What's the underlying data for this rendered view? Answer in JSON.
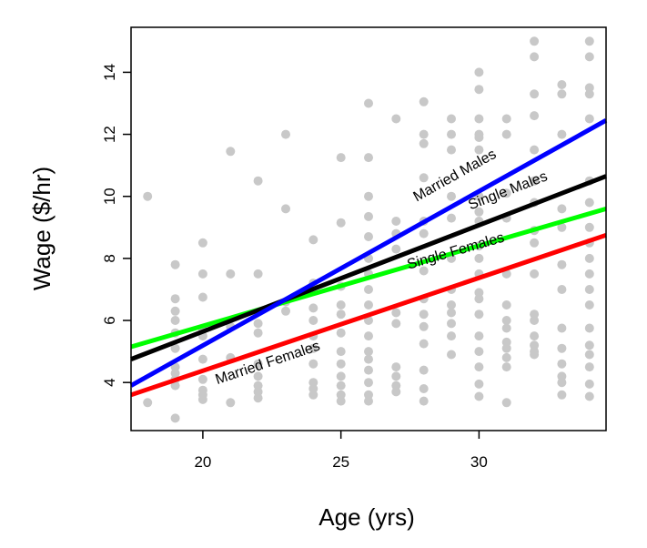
{
  "chart_data": {
    "type": "scatter",
    "title": "",
    "xlabel": "Age (yrs)",
    "ylabel": "Wage ($/hr)",
    "xlim": [
      17.4,
      34.6
    ],
    "ylim": [
      2.45,
      15.45
    ],
    "xticks": [
      20,
      25,
      30
    ],
    "yticks": [
      4,
      6,
      8,
      10,
      12,
      14
    ],
    "grid": false,
    "legend": "none",
    "point_color": "#c8c8c8",
    "points": [
      [
        18,
        10.0
      ],
      [
        18,
        3.35
      ],
      [
        19,
        7.8
      ],
      [
        19,
        6.7
      ],
      [
        19,
        6.3
      ],
      [
        19,
        6.0
      ],
      [
        19,
        5.6
      ],
      [
        19,
        5.1
      ],
      [
        19,
        4.5
      ],
      [
        19,
        4.3
      ],
      [
        19,
        4.1
      ],
      [
        19,
        3.9
      ],
      [
        19,
        2.85
      ],
      [
        20,
        8.5
      ],
      [
        20,
        7.5
      ],
      [
        20,
        6.75
      ],
      [
        20,
        5.7
      ],
      [
        20,
        5.5
      ],
      [
        20,
        4.75
      ],
      [
        20,
        4.1
      ],
      [
        20,
        3.75
      ],
      [
        20,
        3.6
      ],
      [
        20,
        3.45
      ],
      [
        21,
        11.45
      ],
      [
        21,
        7.5
      ],
      [
        21,
        5.8
      ],
      [
        21,
        4.8
      ],
      [
        21,
        3.35
      ],
      [
        22,
        10.5
      ],
      [
        22,
        7.5
      ],
      [
        22,
        5.9
      ],
      [
        22,
        5.6
      ],
      [
        22,
        4.6
      ],
      [
        22,
        4.2
      ],
      [
        22,
        3.9
      ],
      [
        22,
        3.7
      ],
      [
        22,
        3.5
      ],
      [
        23,
        12.0
      ],
      [
        23,
        9.6
      ],
      [
        23,
        6.6
      ],
      [
        23,
        6.3
      ],
      [
        24,
        8.6
      ],
      [
        24,
        7.2
      ],
      [
        24,
        6.4
      ],
      [
        24,
        6.0
      ],
      [
        24,
        5.5
      ],
      [
        24,
        5.1
      ],
      [
        24,
        4.6
      ],
      [
        24,
        4.0
      ],
      [
        24,
        3.8
      ],
      [
        24,
        3.6
      ],
      [
        25,
        11.25
      ],
      [
        25,
        9.15
      ],
      [
        25,
        7.1
      ],
      [
        25,
        6.5
      ],
      [
        25,
        6.2
      ],
      [
        25,
        5.6
      ],
      [
        25,
        5.0
      ],
      [
        25,
        4.6
      ],
      [
        25,
        4.2
      ],
      [
        25,
        3.9
      ],
      [
        25,
        3.6
      ],
      [
        25,
        3.4
      ],
      [
        26,
        13.0
      ],
      [
        26,
        11.25
      ],
      [
        26,
        10.0
      ],
      [
        26,
        9.35
      ],
      [
        26,
        8.7
      ],
      [
        26,
        8.0
      ],
      [
        26,
        7.5
      ],
      [
        26,
        7.0
      ],
      [
        26,
        6.5
      ],
      [
        26,
        6.0
      ],
      [
        26,
        5.5
      ],
      [
        26,
        5.0
      ],
      [
        26,
        4.75
      ],
      [
        26,
        4.4
      ],
      [
        26,
        4.0
      ],
      [
        26,
        3.6
      ],
      [
        26,
        3.4
      ],
      [
        27,
        12.5
      ],
      [
        27,
        9.2
      ],
      [
        27,
        8.8
      ],
      [
        27,
        8.3
      ],
      [
        27,
        6.25
      ],
      [
        27,
        5.9
      ],
      [
        27,
        4.5
      ],
      [
        27,
        4.2
      ],
      [
        27,
        3.9
      ],
      [
        27,
        3.7
      ],
      [
        28,
        13.05
      ],
      [
        28,
        12.0
      ],
      [
        28,
        11.7
      ],
      [
        28,
        10.6
      ],
      [
        28,
        9.2
      ],
      [
        28,
        8.8
      ],
      [
        28,
        7.6
      ],
      [
        28,
        6.7
      ],
      [
        28,
        6.2
      ],
      [
        28,
        5.8
      ],
      [
        28,
        5.25
      ],
      [
        28,
        4.4
      ],
      [
        28,
        3.8
      ],
      [
        28,
        3.4
      ],
      [
        29,
        12.5
      ],
      [
        29,
        12.0
      ],
      [
        29,
        11.5
      ],
      [
        29,
        10.0
      ],
      [
        29,
        9.3
      ],
      [
        29,
        8.0
      ],
      [
        29,
        7.0
      ],
      [
        29,
        6.5
      ],
      [
        29,
        6.25
      ],
      [
        29,
        5.9
      ],
      [
        29,
        5.5
      ],
      [
        29,
        4.9
      ],
      [
        30,
        14.0
      ],
      [
        30,
        13.45
      ],
      [
        30,
        12.5
      ],
      [
        30,
        12.0
      ],
      [
        30,
        11.9
      ],
      [
        30,
        11.5
      ],
      [
        30,
        10.0
      ],
      [
        30,
        9.5
      ],
      [
        30,
        9.2
      ],
      [
        30,
        8.4
      ],
      [
        30,
        8.0
      ],
      [
        30,
        7.5
      ],
      [
        30,
        6.9
      ],
      [
        30,
        6.7
      ],
      [
        30,
        6.2
      ],
      [
        30,
        5.5
      ],
      [
        30,
        5.0
      ],
      [
        30,
        4.5
      ],
      [
        30,
        3.95
      ],
      [
        30,
        3.55
      ],
      [
        31,
        12.5
      ],
      [
        31,
        12.0
      ],
      [
        31,
        10.1
      ],
      [
        31,
        9.3
      ],
      [
        31,
        7.5
      ],
      [
        31,
        6.5
      ],
      [
        31,
        6.0
      ],
      [
        31,
        5.75
      ],
      [
        31,
        5.3
      ],
      [
        31,
        5.1
      ],
      [
        31,
        4.8
      ],
      [
        31,
        4.5
      ],
      [
        31,
        3.35
      ],
      [
        32,
        15.0
      ],
      [
        32,
        14.5
      ],
      [
        32,
        13.3
      ],
      [
        32,
        12.6
      ],
      [
        32,
        11.5
      ],
      [
        32,
        10.5
      ],
      [
        32,
        9.8
      ],
      [
        32,
        8.9
      ],
      [
        32,
        8.5
      ],
      [
        32,
        7.5
      ],
      [
        32,
        6.2
      ],
      [
        32,
        6.0
      ],
      [
        32,
        5.5
      ],
      [
        32,
        5.2
      ],
      [
        32,
        5.0
      ],
      [
        32,
        4.9
      ],
      [
        33,
        13.6
      ],
      [
        33,
        13.3
      ],
      [
        33,
        12.0
      ],
      [
        33,
        9.6
      ],
      [
        33,
        9.0
      ],
      [
        33,
        7.8
      ],
      [
        33,
        7.0
      ],
      [
        33,
        5.75
      ],
      [
        33,
        5.1
      ],
      [
        33,
        4.6
      ],
      [
        33,
        4.2
      ],
      [
        33,
        4.0
      ],
      [
        33,
        3.6
      ],
      [
        34,
        15.0
      ],
      [
        34,
        14.5
      ],
      [
        34,
        13.5
      ],
      [
        34,
        13.3
      ],
      [
        34,
        12.5
      ],
      [
        34,
        10.5
      ],
      [
        34,
        9.8
      ],
      [
        34,
        9.0
      ],
      [
        34,
        8.5
      ],
      [
        34,
        8.0
      ],
      [
        34,
        7.5
      ],
      [
        34,
        7.0
      ],
      [
        34,
        6.5
      ],
      [
        34,
        5.75
      ],
      [
        34,
        5.2
      ],
      [
        34,
        4.9
      ],
      [
        34,
        4.5
      ],
      [
        34,
        3.95
      ],
      [
        34,
        3.55
      ]
    ],
    "series": [
      {
        "name": "Married Males",
        "color": "#0000ff",
        "x": [
          17.4,
          34.6
        ],
        "y": [
          3.9,
          12.45
        ]
      },
      {
        "name": "Single Males",
        "color": "#000000",
        "x": [
          17.4,
          34.6
        ],
        "y": [
          4.75,
          10.65
        ]
      },
      {
        "name": "Single Females",
        "color": "#00ff00",
        "x": [
          17.4,
          34.6
        ],
        "y": [
          5.15,
          9.6
        ]
      },
      {
        "name": "Married Females",
        "color": "#ff0000",
        "x": [
          17.4,
          34.6
        ],
        "y": [
          3.6,
          8.75
        ]
      }
    ],
    "line_labels": [
      {
        "series": "Married Males",
        "text": "Married Males",
        "x": 29.2,
        "y": 10.55
      },
      {
        "series": "Single Males",
        "text": "Single Males",
        "x": 31.1,
        "y": 10.05
      },
      {
        "series": "Single Females",
        "text": "Single Females",
        "x": 29.2,
        "y": 8.1
      },
      {
        "series": "Married Females",
        "text": "Married Females",
        "x": 22.4,
        "y": 4.5
      }
    ]
  }
}
